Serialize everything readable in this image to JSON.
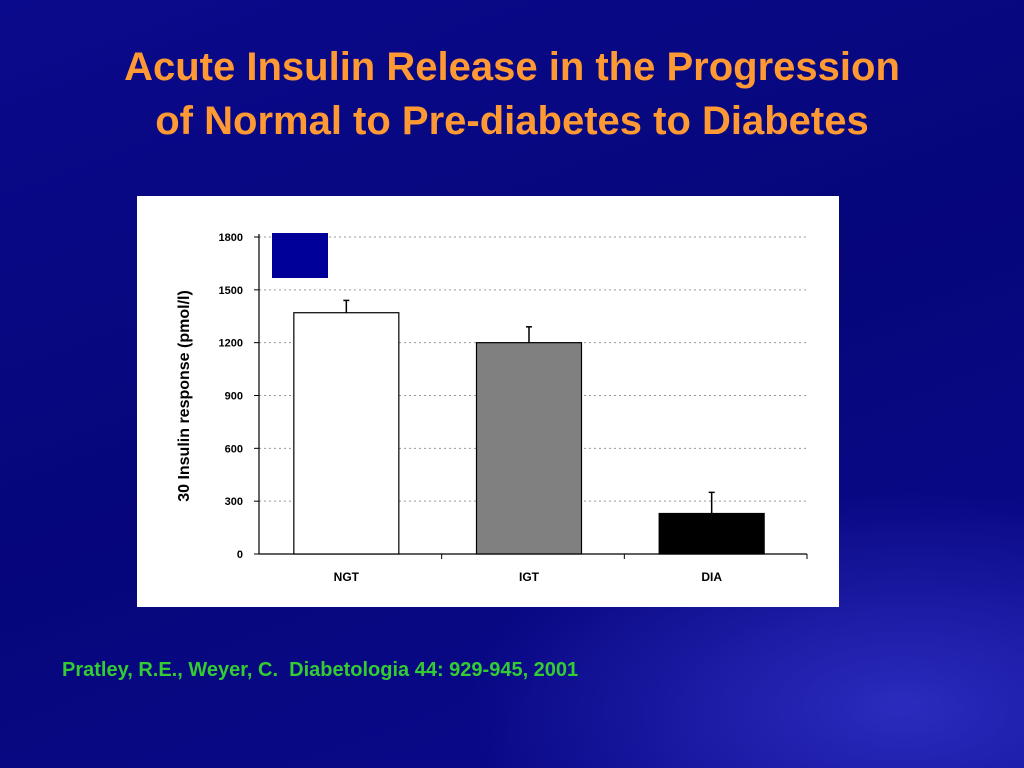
{
  "slide": {
    "title_line1": "Acute Insulin Release in the Progression",
    "title_line2": "of Normal to Pre-diabetes to Diabetes",
    "citation": "Pratley, R.E., Weyer, C.  Diabetologia 44: 929-945, 2001"
  },
  "colors": {
    "title": "#ff9933",
    "citation": "#33cc33",
    "background": "#08087f",
    "legend_swatch": "#000099"
  },
  "chart_data": {
    "type": "bar",
    "categories": [
      "NGT",
      "IGT",
      "DIA"
    ],
    "values": [
      1370,
      1200,
      230
    ],
    "errors": [
      70,
      90,
      120
    ],
    "bar_colors": [
      "#ffffff",
      "#808080",
      "#000000"
    ],
    "ylabel": "30 Insulin response (pmol/l)",
    "xlabel": "",
    "ylim": [
      0,
      1800
    ],
    "yticks": [
      0,
      300,
      600,
      900,
      1200,
      1500,
      1800
    ],
    "ytick_labels": [
      "0",
      "300",
      "600",
      "900",
      "1200",
      "1500",
      "1800"
    ],
    "grid": true,
    "legend": "top-left"
  }
}
